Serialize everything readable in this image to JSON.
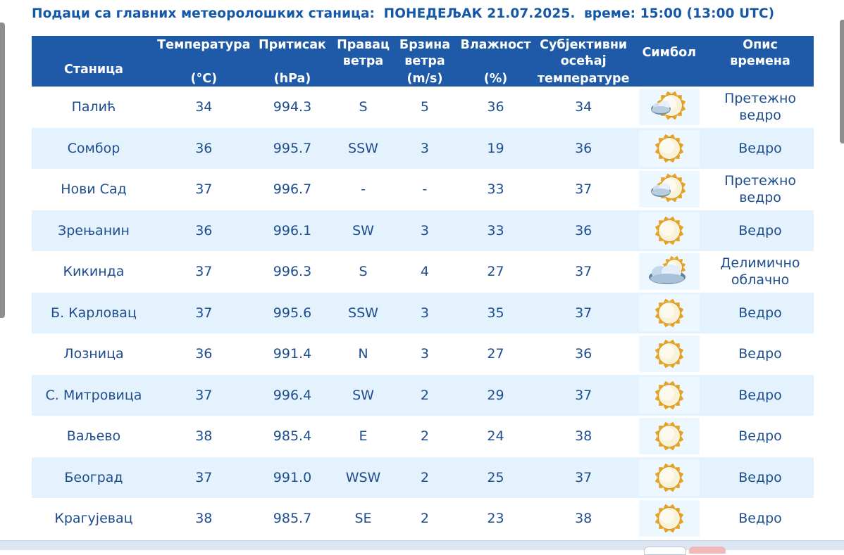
{
  "title": {
    "heading": "Подаци са главних метеоролошких станица:",
    "date": "ПОНЕДЕЉАК 21.07.2025.",
    "time": "време: 15:00 (13:00 UTC)"
  },
  "headers": {
    "station": "Станица",
    "temperature": {
      "top": "Температура",
      "bottom": "(°C)"
    },
    "pressure": {
      "top": "Притисак",
      "bottom": "(hPa)"
    },
    "wind_dir": {
      "top": "Правац",
      "mid": "ветра"
    },
    "wind_speed": {
      "top": "Брзина",
      "mid": "ветра",
      "bottom": "(m/s)"
    },
    "humidity": {
      "top": "Влажност",
      "bottom": "(%)"
    },
    "feels_like": {
      "top": "Субјективни",
      "mid": "осећај",
      "bottom": "температуре"
    },
    "symbol": "Симбол",
    "description": {
      "top": "Опис",
      "mid": "времена"
    }
  },
  "rows": [
    {
      "station": "Палић",
      "temp": "34",
      "pressure": "994.3",
      "wind_dir": "S",
      "wind_speed": "5",
      "humidity": "36",
      "feels": "34",
      "icon": "sun-cloud-icon",
      "desc1": "Претежно",
      "desc2": "ведро"
    },
    {
      "station": "Сомбор",
      "temp": "36",
      "pressure": "995.7",
      "wind_dir": "SSW",
      "wind_speed": "3",
      "humidity": "19",
      "feels": "36",
      "icon": "sun-icon",
      "desc1": "Ведро",
      "desc2": ""
    },
    {
      "station": "Нови Сад",
      "temp": "37",
      "pressure": "996.7",
      "wind_dir": "-",
      "wind_speed": "-",
      "humidity": "33",
      "feels": "37",
      "icon": "sun-cloud-icon",
      "desc1": "Претежно",
      "desc2": "ведро"
    },
    {
      "station": "Зрењанин",
      "temp": "36",
      "pressure": "996.1",
      "wind_dir": "SW",
      "wind_speed": "3",
      "humidity": "33",
      "feels": "36",
      "icon": "sun-icon",
      "desc1": "Ведро",
      "desc2": ""
    },
    {
      "station": "Кикинда",
      "temp": "37",
      "pressure": "996.3",
      "wind_dir": "S",
      "wind_speed": "4",
      "humidity": "27",
      "feels": "37",
      "icon": "partly-cloudy-icon",
      "desc1": "Делимично",
      "desc2": "облачно"
    },
    {
      "station": "Б. Карловац",
      "temp": "37",
      "pressure": "995.6",
      "wind_dir": "SSW",
      "wind_speed": "3",
      "humidity": "35",
      "feels": "37",
      "icon": "sun-icon",
      "desc1": "Ведро",
      "desc2": ""
    },
    {
      "station": "Лозница",
      "temp": "36",
      "pressure": "991.4",
      "wind_dir": "N",
      "wind_speed": "3",
      "humidity": "27",
      "feels": "36",
      "icon": "sun-icon",
      "desc1": "Ведро",
      "desc2": ""
    },
    {
      "station": "С. Митровица",
      "temp": "37",
      "pressure": "996.4",
      "wind_dir": "SW",
      "wind_speed": "2",
      "humidity": "29",
      "feels": "37",
      "icon": "sun-icon",
      "desc1": "Ведро",
      "desc2": ""
    },
    {
      "station": "Ваљево",
      "temp": "38",
      "pressure": "985.4",
      "wind_dir": "E",
      "wind_speed": "2",
      "humidity": "24",
      "feels": "38",
      "icon": "sun-icon",
      "desc1": "Ведро",
      "desc2": ""
    },
    {
      "station": "Београд",
      "temp": "37",
      "pressure": "991.0",
      "wind_dir": "WSW",
      "wind_speed": "2",
      "humidity": "25",
      "feels": "37",
      "icon": "sun-icon",
      "desc1": "Ведро",
      "desc2": ""
    },
    {
      "station": "Крагујевац",
      "temp": "38",
      "pressure": "985.7",
      "wind_dir": "SE",
      "wind_speed": "2",
      "humidity": "23",
      "feels": "38",
      "icon": "sun-icon",
      "desc1": "Ведро",
      "desc2": ""
    }
  ],
  "colors": {
    "header_bg": "#1e5aa8",
    "title": "#1558a8",
    "text": "#1e4d8e",
    "feels_like": "#f28c1a",
    "row_alt": "#e4f2fd"
  }
}
